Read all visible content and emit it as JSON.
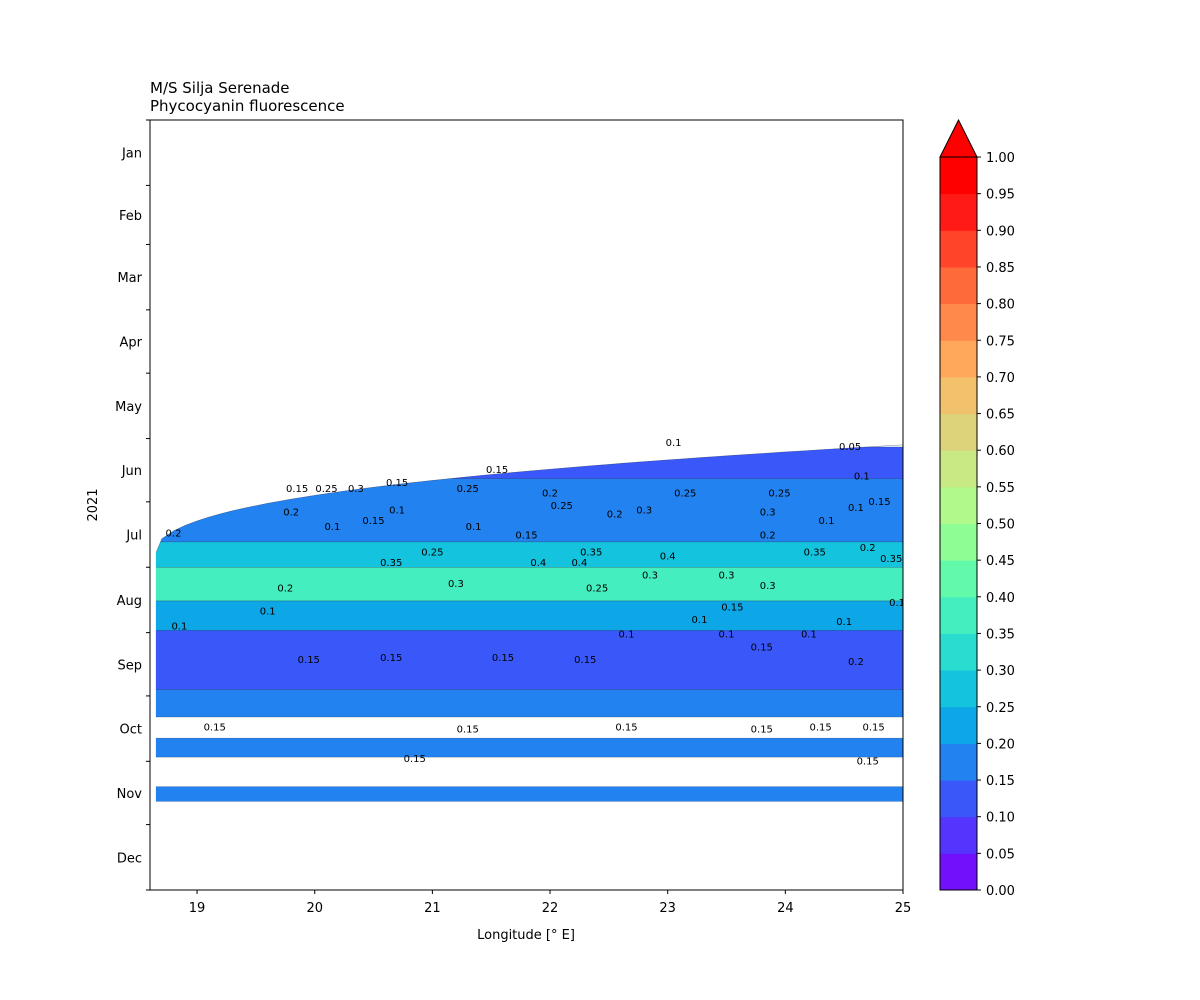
{
  "chart_data": {
    "type": "contour",
    "title": "M/S Silja Serenade",
    "subtitle": "Phycocyanin fluorescence",
    "xlabel": "Longitude [° E]",
    "ylabel": "2021",
    "xlim": [
      18.6,
      25
    ],
    "x_ticks": [
      19,
      20,
      21,
      22,
      23,
      24,
      25
    ],
    "y_months": [
      "Jan",
      "Feb",
      "Mar",
      "Apr",
      "May",
      "Jun",
      "Jul",
      "Aug",
      "Sep",
      "Oct",
      "Nov",
      "Dec"
    ],
    "colorbar": {
      "levels": [
        "0.00",
        "0.05",
        "0.10",
        "0.15",
        "0.20",
        "0.25",
        "0.30",
        "0.35",
        "0.40",
        "0.45",
        "0.50",
        "0.55",
        "0.60",
        "0.65",
        "0.70",
        "0.75",
        "0.80",
        "0.85",
        "0.90",
        "0.95",
        "1.00"
      ],
      "colors": [
        "#7210fb",
        "#5534fd",
        "#3a58f9",
        "#2282f0",
        "#0da6e6",
        "#14c3dd",
        "#2adcd0",
        "#44eebe",
        "#62f9aa",
        "#8efe94",
        "#b0f98a",
        "#c8e983",
        "#dcd37a",
        "#f2c16c",
        "#ffa85c",
        "#ff894b",
        "#ff6a3a",
        "#ff442a",
        "#ff1a16",
        "#ff0000"
      ],
      "extend": "max"
    },
    "bands": [
      {
        "lat0": 18.6,
        "lat1": 25,
        "day0": 155,
        "day1": 170,
        "value": 0.1
      },
      {
        "lat0": 18.6,
        "lat1": 25,
        "day0": 170,
        "day1": 200,
        "value": 0.15
      },
      {
        "lat0": 18.6,
        "lat1": 25,
        "day0": 200,
        "day1": 212,
        "value": 0.25
      },
      {
        "lat0": 18.6,
        "lat1": 25,
        "day0": 212,
        "day1": 228,
        "value": 0.35
      },
      {
        "lat0": 18.6,
        "lat1": 25,
        "day0": 228,
        "day1": 242,
        "value": 0.2
      },
      {
        "lat0": 18.6,
        "lat1": 25,
        "day0": 242,
        "day1": 270,
        "value": 0.12
      },
      {
        "lat0": 18.6,
        "lat1": 25,
        "day0": 270,
        "day1": 283,
        "value": 0.15
      },
      {
        "lat0": 18.6,
        "lat1": 25,
        "day0": 293,
        "day1": 302,
        "value": 0.18
      },
      {
        "lat0": 18.6,
        "lat1": 25,
        "day0": 316,
        "day1": 323,
        "value": 0.18
      }
    ],
    "contour_labels": [
      {
        "lon": 19.85,
        "day": 175,
        "text": "0.15"
      },
      {
        "lon": 20.1,
        "day": 175,
        "text": "0.25"
      },
      {
        "lon": 20.35,
        "day": 175,
        "text": "0.3"
      },
      {
        "lon": 20.7,
        "day": 172,
        "text": "0.15"
      },
      {
        "lon": 21.3,
        "day": 175,
        "text": "0.25"
      },
      {
        "lon": 21.55,
        "day": 166,
        "text": "0.15"
      },
      {
        "lon": 23.05,
        "day": 153,
        "text": "0.1"
      },
      {
        "lon": 24.55,
        "day": 155,
        "text": "0.05"
      },
      {
        "lon": 24.65,
        "day": 169,
        "text": "0.1"
      },
      {
        "lon": 24.8,
        "day": 181,
        "text": "0.15"
      },
      {
        "lon": 19.8,
        "day": 186,
        "text": "0.2"
      },
      {
        "lon": 20.7,
        "day": 185,
        "text": "0.1"
      },
      {
        "lon": 22.0,
        "day": 177,
        "text": "0.2"
      },
      {
        "lon": 22.1,
        "day": 183,
        "text": "0.25"
      },
      {
        "lon": 22.55,
        "day": 187,
        "text": "0.2"
      },
      {
        "lon": 22.8,
        "day": 185,
        "text": "0.3"
      },
      {
        "lon": 23.15,
        "day": 177,
        "text": "0.25"
      },
      {
        "lon": 23.85,
        "day": 186,
        "text": "0.3"
      },
      {
        "lon": 23.95,
        "day": 177,
        "text": "0.25"
      },
      {
        "lon": 24.6,
        "day": 184,
        "text": "0.1"
      },
      {
        "lon": 24.35,
        "day": 190,
        "text": "0.1"
      },
      {
        "lon": 18.8,
        "day": 196,
        "text": "0.2"
      },
      {
        "lon": 20.15,
        "day": 193,
        "text": "0.1"
      },
      {
        "lon": 20.5,
        "day": 190,
        "text": "0.15"
      },
      {
        "lon": 21.35,
        "day": 193,
        "text": "0.1"
      },
      {
        "lon": 21.8,
        "day": 197,
        "text": "0.15"
      },
      {
        "lon": 23.85,
        "day": 197,
        "text": "0.2"
      },
      {
        "lon": 21.0,
        "day": 205,
        "text": "0.25"
      },
      {
        "lon": 22.35,
        "day": 205,
        "text": "0.35"
      },
      {
        "lon": 23.0,
        "day": 207,
        "text": "0.4"
      },
      {
        "lon": 24.25,
        "day": 205,
        "text": "0.35"
      },
      {
        "lon": 24.7,
        "day": 203,
        "text": "0.2"
      },
      {
        "lon": 24.9,
        "day": 208,
        "text": "0.35"
      },
      {
        "lon": 20.65,
        "day": 210,
        "text": "0.35"
      },
      {
        "lon": 21.9,
        "day": 210,
        "text": "0.4"
      },
      {
        "lon": 22.25,
        "day": 210,
        "text": "0.4"
      },
      {
        "lon": 22.85,
        "day": 216,
        "text": "0.3"
      },
      {
        "lon": 23.5,
        "day": 216,
        "text": "0.3"
      },
      {
        "lon": 19.75,
        "day": 222,
        "text": "0.2"
      },
      {
        "lon": 21.2,
        "day": 220,
        "text": "0.3"
      },
      {
        "lon": 22.4,
        "day": 222,
        "text": "0.25"
      },
      {
        "lon": 23.85,
        "day": 221,
        "text": "0.3"
      },
      {
        "lon": 19.6,
        "day": 233,
        "text": "0.1"
      },
      {
        "lon": 18.85,
        "day": 240,
        "text": "0.1"
      },
      {
        "lon": 23.55,
        "day": 231,
        "text": "0.15"
      },
      {
        "lon": 23.27,
        "day": 237,
        "text": "0.1"
      },
      {
        "lon": 24.95,
        "day": 229,
        "text": "0.1"
      },
      {
        "lon": 22.65,
        "day": 244,
        "text": "0.1"
      },
      {
        "lon": 23.5,
        "day": 244,
        "text": "0.1"
      },
      {
        "lon": 24.2,
        "day": 244,
        "text": "0.1"
      },
      {
        "lon": 24.5,
        "day": 238,
        "text": "0.1"
      },
      {
        "lon": 23.8,
        "day": 250,
        "text": "0.15"
      },
      {
        "lon": 19.95,
        "day": 256,
        "text": "0.15"
      },
      {
        "lon": 20.65,
        "day": 255,
        "text": "0.15"
      },
      {
        "lon": 21.6,
        "day": 255,
        "text": "0.15"
      },
      {
        "lon": 22.3,
        "day": 256,
        "text": "0.15"
      },
      {
        "lon": 24.6,
        "day": 257,
        "text": "0.2"
      },
      {
        "lon": 19.15,
        "day": 288,
        "text": "0.15"
      },
      {
        "lon": 21.3,
        "day": 289,
        "text": "0.15"
      },
      {
        "lon": 22.65,
        "day": 288,
        "text": "0.15"
      },
      {
        "lon": 23.8,
        "day": 289,
        "text": "0.15"
      },
      {
        "lon": 24.3,
        "day": 288,
        "text": "0.15"
      },
      {
        "lon": 24.75,
        "day": 288,
        "text": "0.15"
      },
      {
        "lon": 20.85,
        "day": 303,
        "text": "0.15"
      },
      {
        "lon": 24.7,
        "day": 304,
        "text": "0.15"
      }
    ]
  }
}
